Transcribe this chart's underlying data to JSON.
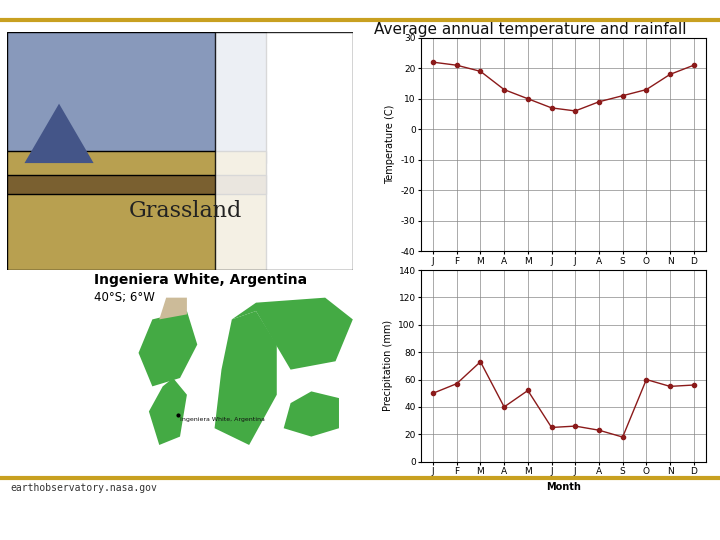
{
  "title": "Average annual temperature and rainfall",
  "months": [
    "J",
    "F",
    "M",
    "A",
    "M",
    "J",
    "J",
    "A",
    "S",
    "O",
    "N",
    "D"
  ],
  "temperature": [
    22,
    21,
    19,
    13,
    10,
    7,
    6,
    9,
    11,
    13,
    18,
    21
  ],
  "precipitation": [
    50,
    57,
    73,
    40,
    52,
    25,
    26,
    23,
    18,
    60,
    55,
    56
  ],
  "temp_ylim": [
    -40,
    30
  ],
  "temp_yticks": [
    -40,
    -30,
    -20,
    -10,
    0,
    10,
    20,
    30
  ],
  "precip_ylim": [
    0,
    140
  ],
  "precip_yticks": [
    0,
    20,
    40,
    60,
    80,
    100,
    120,
    140
  ],
  "line_color": "#8B1A1A",
  "marker": "o",
  "marker_size": 3,
  "line_width": 1.0,
  "grid_color": "#888888",
  "bg_color": "#ffffff",
  "title_color": "#111111",
  "title_fontsize": 11,
  "axis_label_fontsize": 7,
  "tick_fontsize": 6.5,
  "xlabel": "Month",
  "temp_ylabel": "Temperature (C)",
  "precip_ylabel": "Precipitation (mm)",
  "footer_text": "earthobservatory.nasa.gov",
  "location_title": "Ingeniera White, Argentina",
  "location_subtitle": "40°S; 6°W",
  "header_line_color": "#C8A020",
  "footer_line_color": "#C8A020",
  "grassland_color_sky": "#8899bb",
  "grassland_color_ground": "#b8a060",
  "map_ocean_color": "#55ccdd",
  "map_land_color": "#44aa44"
}
